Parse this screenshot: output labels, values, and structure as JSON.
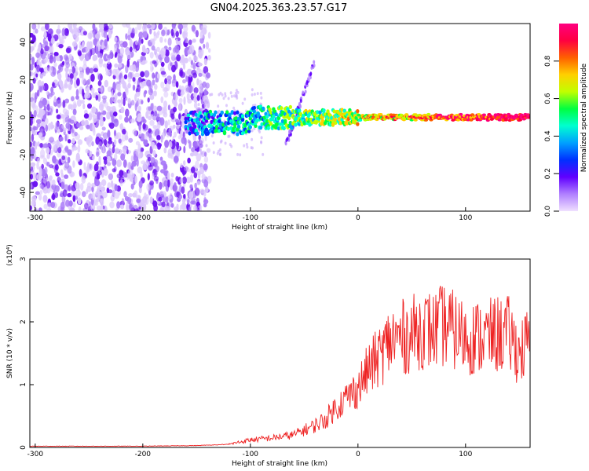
{
  "title": "GN04.2025.363.23.57.G17",
  "chart_data": [
    {
      "type": "heatmap",
      "title": "GN04.2025.363.23.57.G17",
      "xlabel": "Height of straight line (km)",
      "ylabel": "Frequency (Hz)",
      "xlim": [
        -305,
        160
      ],
      "ylim": [
        -50,
        50
      ],
      "x_ticks": [
        "-300",
        "-200",
        "-100",
        "0",
        "100"
      ],
      "y_ticks": [
        "-40",
        "-20",
        "0",
        "20",
        "40"
      ],
      "colorbar": {
        "label": "Normalized spectral amplitude",
        "range": [
          0,
          1
        ],
        "ticks": [
          "0.0",
          "0.2",
          "0.4",
          "0.6",
          "0.8"
        ],
        "colors": [
          "#f0e0ff",
          "#b080ff",
          "#6000ff",
          "#0030ff",
          "#00a0ff",
          "#00ffd0",
          "#00ff40",
          "#c0ff00",
          "#ffd000",
          "#ff6000",
          "#ff0040",
          "#ff0080"
        ]
      },
      "features": [
        {
          "name": "noise",
          "x_range": [
            -305,
            -138
          ],
          "freq_range": [
            -50,
            50
          ],
          "amplitude": 0.1
        },
        {
          "name": "band",
          "x_range": [
            -160,
            160
          ],
          "freq_center": 0,
          "amplitude_range": [
            0.3,
            1.0
          ]
        },
        {
          "name": "streak",
          "x_range": [
            -70,
            -40
          ],
          "freq_range": [
            -20,
            30
          ],
          "amplitude": 0.2
        }
      ]
    },
    {
      "type": "line",
      "xlabel": "Height of straight line (km)",
      "ylabel": "SNR (10 * v/v)",
      "y_multiplier": "(x10⁴)",
      "xlim": [
        -305,
        160
      ],
      "ylim": [
        0,
        3
      ],
      "x_ticks": [
        "-300",
        "-200",
        "-100",
        "0",
        "100"
      ],
      "y_ticks": [
        "0",
        "1",
        "2",
        "3"
      ],
      "line_color": "#ee2222",
      "x": [
        -305,
        -250,
        -200,
        -150,
        -120,
        -100,
        -80,
        -60,
        -40,
        -30,
        -20,
        -10,
        0,
        10,
        20,
        30,
        40,
        50,
        60,
        70,
        80,
        90,
        100,
        110,
        120,
        130,
        140,
        150,
        160
      ],
      "y": [
        0.02,
        0.02,
        0.02,
        0.03,
        0.05,
        0.12,
        0.15,
        0.2,
        0.35,
        0.45,
        0.65,
        0.8,
        0.95,
        1.25,
        1.45,
        1.7,
        1.75,
        1.8,
        1.9,
        1.85,
        1.95,
        1.85,
        1.75,
        1.75,
        1.75,
        1.8,
        1.8,
        1.5,
        1.7
      ]
    }
  ]
}
